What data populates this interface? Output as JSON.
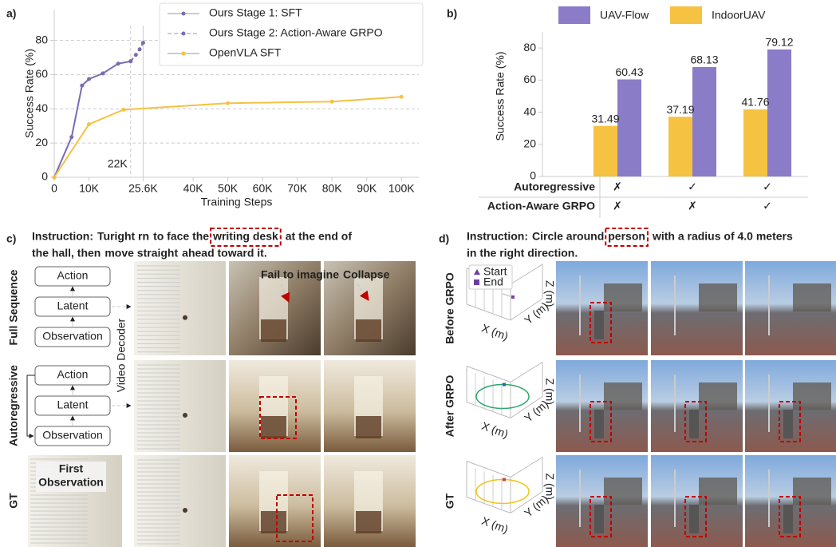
{
  "panel_labels": [
    "a)",
    "b)",
    "c)",
    "d)"
  ],
  "chart_data": [
    {
      "type": "line",
      "x_label": "Training Steps",
      "y_label": "Success Rate (%)",
      "xlim": [
        0,
        105000
      ],
      "ylim": [
        0,
        98
      ],
      "xticks": [
        0,
        {
          "value": 10000,
          "label": "10K"
        },
        {
          "value": 25600,
          "label": "25.6K"
        },
        {
          "value": 40000,
          "label": "40K"
        },
        {
          "value": 50000,
          "label": "50K"
        },
        {
          "value": 60000,
          "label": "60K"
        },
        {
          "value": 70000,
          "label": "70K"
        },
        {
          "value": 80000,
          "label": "80K"
        },
        {
          "value": 90000,
          "label": "90K"
        },
        {
          "value": 100000,
          "label": "100K"
        }
      ],
      "yticks": [
        0,
        20,
        40,
        60,
        80
      ],
      "grid": true,
      "legend": "upper center",
      "series": [
        {
          "name": "Ours Stage 1: SFT",
          "color": "#7b6bb5",
          "style": "solid",
          "x": [
            0,
            5000,
            8000,
            10000,
            14000,
            18400,
            22000
          ],
          "values": [
            0,
            23.5,
            53.6,
            57.4,
            60.7,
            66.4,
            67.8
          ]
        },
        {
          "name": "Ours Stage 2: Action-Aware GRPO",
          "color": "#7b6bb5",
          "style": "dashed",
          "x": [
            22000,
            23500,
            24600,
            25600
          ],
          "values": [
            67.8,
            71.5,
            74.8,
            78.6
          ]
        },
        {
          "name": "OpenVLA SFT",
          "color": "#f5c242",
          "style": "solid",
          "x": [
            0,
            10000,
            20000,
            50000,
            80000,
            100000
          ],
          "values": [
            0,
            31,
            39.5,
            43.3,
            44.2,
            47
          ]
        }
      ],
      "vlines": [
        {
          "value": 22000,
          "label": "22K",
          "style": "dashed"
        },
        {
          "value": 25600,
          "style": "solid"
        }
      ]
    },
    {
      "type": "bar",
      "y_label": "Success Rate (%)",
      "ylim": [
        0,
        90
      ],
      "yticks": [
        0,
        20,
        40,
        60,
        80
      ],
      "legend": "top",
      "categories": [
        null,
        null,
        null
      ],
      "series": [
        {
          "name": "UAV-Flow",
          "color": "#8b7cc8",
          "values": [
            60.43,
            68.13,
            79.12
          ]
        },
        {
          "name": "IndoorUAV",
          "color": "#f5c242",
          "values": [
            31.49,
            37.19,
            41.76
          ]
        }
      ],
      "table": {
        "rows": [
          {
            "label": "Autoregressive",
            "cells": [
              {
                "text": "✗",
                "color": "#d62728"
              },
              {
                "text": "✓",
                "color": "#2ca02c"
              },
              {
                "text": "✓",
                "color": "#2ca02c"
              }
            ]
          },
          {
            "label": "Action-Aware GRPO",
            "cells": [
              {
                "text": "✗",
                "color": "#d62728"
              },
              {
                "text": "✗",
                "color": "#d62728"
              },
              {
                "text": "✓",
                "color": "#2ca02c"
              }
            ]
          }
        ]
      }
    }
  ],
  "panel_c": {
    "instruction": [
      [
        {
          "text": "Instruction:"
        },
        {
          "text": "Turight rn",
          "color": "#1f4fa8"
        },
        {
          "text": "to face the"
        },
        {
          "text": "writing desk",
          "color": "#c00000",
          "boxed": true
        },
        {
          "text": "at the end of"
        }
      ],
      [
        {
          "text": "the hall, then"
        },
        {
          "text": "move straight",
          "color": "#1f4fa8"
        },
        {
          "text": "ahead toward it."
        }
      ]
    ],
    "rows": [
      "Full Sequence",
      "Autoregressive",
      "GT"
    ],
    "diagram_full_sequence": [
      "Action",
      "Latent",
      "Observation"
    ],
    "diagram_autoregressive": [
      "Action",
      "Latent",
      "Observation"
    ],
    "video_decoder": "Video Decoder",
    "annotations": [
      "Fail to imagine",
      "Collapse"
    ],
    "first_observation": [
      "First",
      "Observation"
    ]
  },
  "panel_d": {
    "instruction": [
      [
        {
          "text": "Instruction:"
        },
        {
          "text": "Circle around",
          "color": "#1f4fa8"
        },
        {
          "text": "person",
          "color": "#c00000",
          "boxed": true
        },
        {
          "text": "with a radius of 4.0 meters"
        }
      ],
      [
        {
          "text": "in the right direction."
        }
      ]
    ],
    "rows": [
      "Before GRPO",
      "After GRPO",
      "GT"
    ],
    "legend": [
      "Start",
      "End"
    ],
    "plot_axes": [
      "X (m)",
      "Y (m)",
      "Z (m)"
    ]
  }
}
